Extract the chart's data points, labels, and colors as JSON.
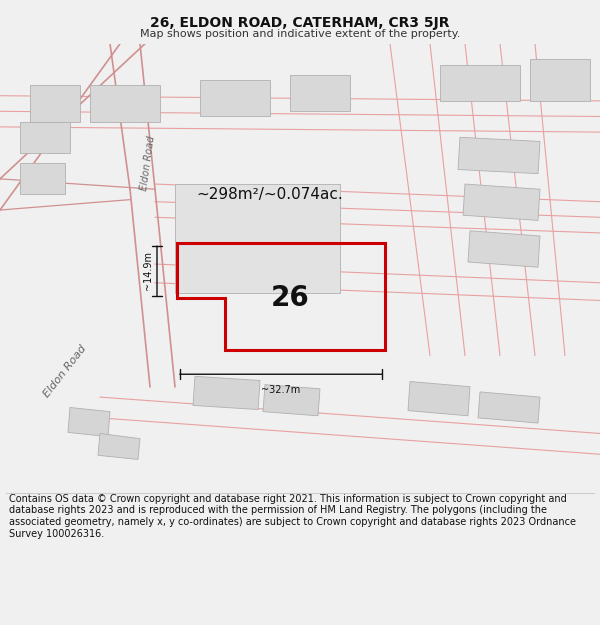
{
  "title": "26, ELDON ROAD, CATERHAM, CR3 5JR",
  "subtitle": "Map shows position and indicative extent of the property.",
  "footer": "Contains OS data © Crown copyright and database right 2021. This information is subject to Crown copyright and database rights 2023 and is reproduced with the permission of HM Land Registry. The polygons (including the associated geometry, namely x, y co-ordinates) are subject to Crown copyright and database rights 2023 Ordnance Survey 100026316.",
  "area_label": "~298m²/~0.074ac.",
  "width_label": "~32.7m",
  "height_label": "~14.9m",
  "number_label": "26",
  "bg_color": "#f0f0f0",
  "map_bg": "#f8f8f8",
  "road_line_color": "#e8a0a0",
  "building_fill": "#d8d8d8",
  "building_stroke": "#b0b0b0",
  "plot_outline_color": "#cc0000",
  "dim_line_color": "#111111",
  "road_label_color": "#666666",
  "title_fontsize": 10,
  "subtitle_fontsize": 8,
  "footer_fontsize": 7
}
